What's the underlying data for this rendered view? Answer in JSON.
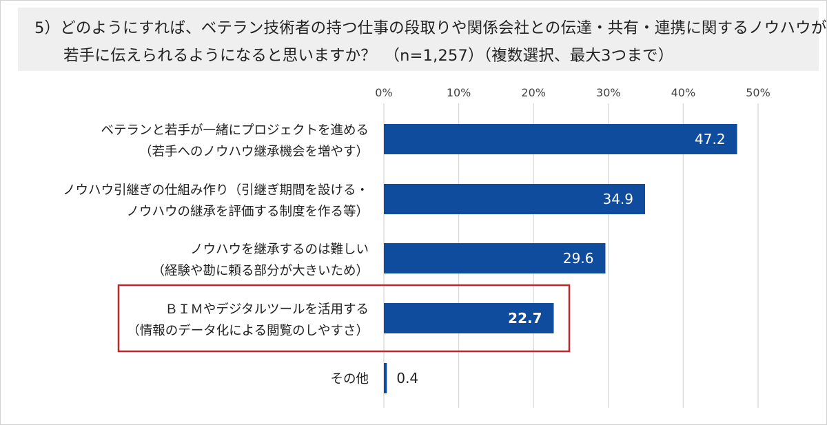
{
  "question": {
    "line1": "5）どのようにすれば、ベテラン技術者の持つ仕事の段取りや関係会社との伝達・共有・連携に関するノウハウが",
    "line2": "若手に伝えられるようになると思いますか？　（n=1,257）（複数選択、最大3つまで）"
  },
  "chart_data": {
    "type": "bar",
    "orientation": "horizontal",
    "title": "5）どのようにすれば、ベテラン技術者の持つ仕事の段取りや関係会社との伝達・共有・連携に関するノウハウが若手に伝えられるようになると思いますか？（n=1,257）（複数選択、最大3つまで）",
    "xlim": [
      0,
      50
    ],
    "xticks": [
      0,
      10,
      20,
      30,
      40,
      50
    ],
    "xtick_labels": [
      "0%",
      "10%",
      "20%",
      "30%",
      "40%",
      "50%"
    ],
    "grid": true,
    "categories": [
      [
        "ベテランと若手が一緒にプロジェクトを進める",
        "（若手へのノウハウ継承機会を増やす）"
      ],
      [
        "ノウハウ引継ぎの仕組み作り（引継ぎ期間を設ける・",
        "ノウハウの継承を評価する制度を作る等）"
      ],
      [
        "ノウハウを継承するのは難しい",
        "（経験や勘に頼る部分が大きいため）"
      ],
      [
        "ＢＩＭやデジタルツールを活用する",
        "（情報のデータ化による閲覧のしやすさ）"
      ],
      [
        "その他"
      ]
    ],
    "values": [
      47.2,
      34.9,
      29.6,
      22.7,
      0.4
    ],
    "value_labels": [
      "47.2",
      "34.9",
      "29.6",
      "22.7",
      "0.4"
    ],
    "highlight_index": 3,
    "colors": {
      "bar": "#0f4c9e",
      "highlight_border": "#c0262d",
      "grid": "#d9d9d9",
      "label_inside": "#ffffff",
      "label_outside": "#222222"
    }
  }
}
